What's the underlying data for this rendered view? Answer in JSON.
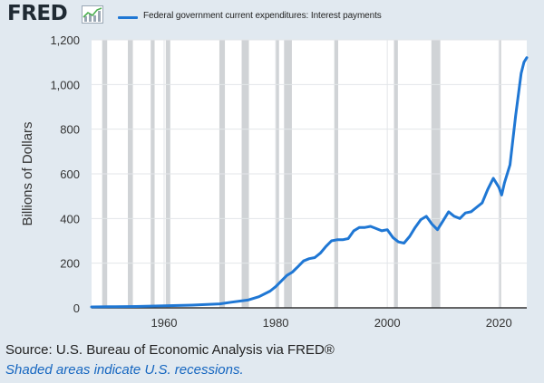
{
  "header": {
    "logo_text": "FRED",
    "logo_icon": "trend-graph-icon"
  },
  "colors": {
    "series": "#1f77d4",
    "background": "#e1e9f0",
    "plot_area": "#ffffff",
    "recession": "#d0d3d6",
    "note": "#1566c0"
  },
  "chart_data": {
    "type": "line",
    "title": "",
    "xlabel": "",
    "ylabel": "Billions of Dollars",
    "xlim": [
      1947,
      2025
    ],
    "ylim": [
      0,
      1200
    ],
    "x_ticks": [
      1960,
      1980,
      2000,
      2020
    ],
    "y_ticks": [
      0,
      200,
      400,
      600,
      800,
      1000,
      1200
    ],
    "y_tick_labels": [
      "0",
      "200",
      "400",
      "600",
      "800",
      "1,000",
      "1,200"
    ],
    "grid": true,
    "legend_position": "top",
    "recessions": [
      [
        1948.9,
        1949.8
      ],
      [
        1953.5,
        1954.4
      ],
      [
        1957.6,
        1958.3
      ],
      [
        1960.3,
        1961.1
      ],
      [
        1969.9,
        1970.9
      ],
      [
        1973.9,
        1975.2
      ],
      [
        1980.0,
        1980.6
      ],
      [
        1981.5,
        1982.9
      ],
      [
        1990.5,
        1991.2
      ],
      [
        2001.2,
        2001.9
      ],
      [
        2007.9,
        2009.5
      ],
      [
        2020.1,
        2020.4
      ]
    ],
    "series": [
      {
        "name": "Federal government current expenditures: Interest payments",
        "x": [
          1947,
          1950,
          1955,
          1960,
          1965,
          1970,
          1972,
          1975,
          1977,
          1979,
          1980,
          1981,
          1982,
          1983,
          1984,
          1985,
          1986,
          1987,
          1988,
          1989,
          1990,
          1991,
          1992,
          1993,
          1994,
          1995,
          1996,
          1997,
          1998,
          1999,
          2000,
          2001,
          2002,
          2003,
          2004,
          2005,
          2006,
          2007,
          2008,
          2009,
          2010,
          2011,
          2012,
          2013,
          2014,
          2015,
          2016,
          2017,
          2018,
          2019,
          2020,
          2020.5,
          2021,
          2022,
          2023,
          2024,
          2024.5,
          2025
        ],
        "values": [
          4,
          5,
          6,
          9,
          12,
          18,
          25,
          35,
          50,
          75,
          95,
          120,
          145,
          160,
          185,
          210,
          220,
          225,
          245,
          275,
          300,
          305,
          305,
          310,
          345,
          360,
          360,
          365,
          355,
          345,
          350,
          315,
          295,
          290,
          320,
          360,
          395,
          410,
          375,
          350,
          390,
          430,
          410,
          400,
          425,
          430,
          450,
          470,
          530,
          580,
          540,
          505,
          560,
          640,
          860,
          1050,
          1100,
          1120
        ]
      }
    ]
  },
  "footer": {
    "source": "Source: U.S. Bureau of Economic Analysis via FRED®",
    "note": "Shaded areas indicate U.S. recessions."
  }
}
